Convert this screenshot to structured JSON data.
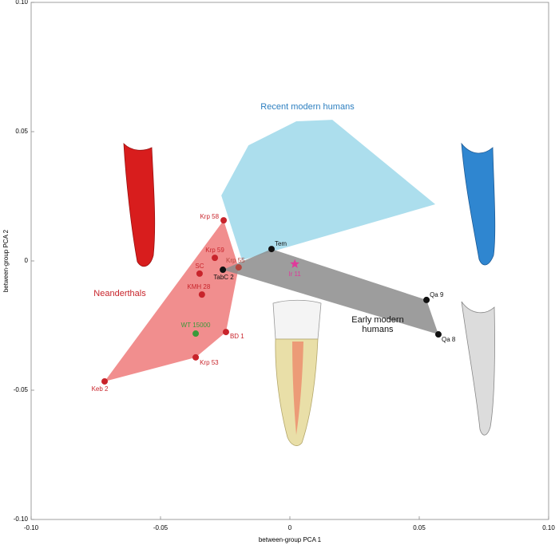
{
  "chart_data": {
    "type": "scatter",
    "xlabel": "between-group PCA 1",
    "ylabel": "between-group PCA 2",
    "xlim": [
      -0.1,
      0.1
    ],
    "ylim": [
      -0.1,
      0.1
    ],
    "xticks": [
      {
        "value": -0.1,
        "label": "-0.10"
      },
      -0.05,
      0,
      0.05,
      {
        "value": 0.1,
        "label": "0.10"
      }
    ],
    "yticks": [
      {
        "value": -0.1,
        "label": "-0.10"
      },
      -0.05,
      0,
      0.05,
      {
        "value": 0.1,
        "label": "0.10"
      }
    ],
    "groups": [
      {
        "name": "Recent modern humans",
        "color": "#9dd8ea",
        "label_color": "#2d7fc0",
        "hull_x": [
          -0.0265,
          -0.016,
          0.0025,
          0.0164,
          0.0562,
          -0.0185
        ],
        "hull_y": [
          0.0253,
          0.0447,
          0.054,
          0.0546,
          0.0219,
          0.0003
        ]
      },
      {
        "name": "Neanderthals",
        "color": "#ee7a7a",
        "label_color": "#c8242b",
        "labels": [
          "Krp 58",
          "Krp 59",
          "SC",
          "Krp 55",
          "KMH 28",
          "WT 15000",
          "BD 1",
          "Krp 53",
          "Keb 2"
        ],
        "x": [
          -0.0256,
          -0.029,
          -0.0349,
          -0.0198,
          -0.034,
          -0.0364,
          -0.0247,
          -0.0364,
          -0.0716
        ],
        "y": [
          0.0157,
          0.0012,
          -0.0049,
          -0.0025,
          -0.013,
          -0.0281,
          -0.0275,
          -0.0373,
          -0.0466
        ],
        "marker_colors": [
          "#c8242b",
          "#c8242b",
          "#c8242b",
          "#b5473f",
          "#c8242b",
          "#3a9a3a",
          "#c8242b",
          "#c8242b",
          "#c8242b"
        ],
        "markers": [
          "circle",
          "circle",
          "circle",
          "circle",
          "circle",
          "circle",
          "circle",
          "circle",
          "circle"
        ]
      },
      {
        "name": "Early modern humans",
        "color": "#8c8c8c",
        "label_color": "#111111",
        "labels": [
          "TabC 2",
          "Tem",
          "Ir 11",
          "Qa 9",
          "Qa 8"
        ],
        "x": [
          -0.0259,
          -0.0071,
          0.0019,
          0.0528,
          0.0574
        ],
        "y": [
          -0.0034,
          0.0046,
          -0.0012,
          -0.0151,
          -0.0284
        ],
        "marker_colors": [
          "#111111",
          "#111111",
          "#e0399b",
          "#111111",
          "#111111"
        ],
        "markers": [
          "circle",
          "circle",
          "star",
          "circle",
          "circle"
        ]
      }
    ]
  }
}
